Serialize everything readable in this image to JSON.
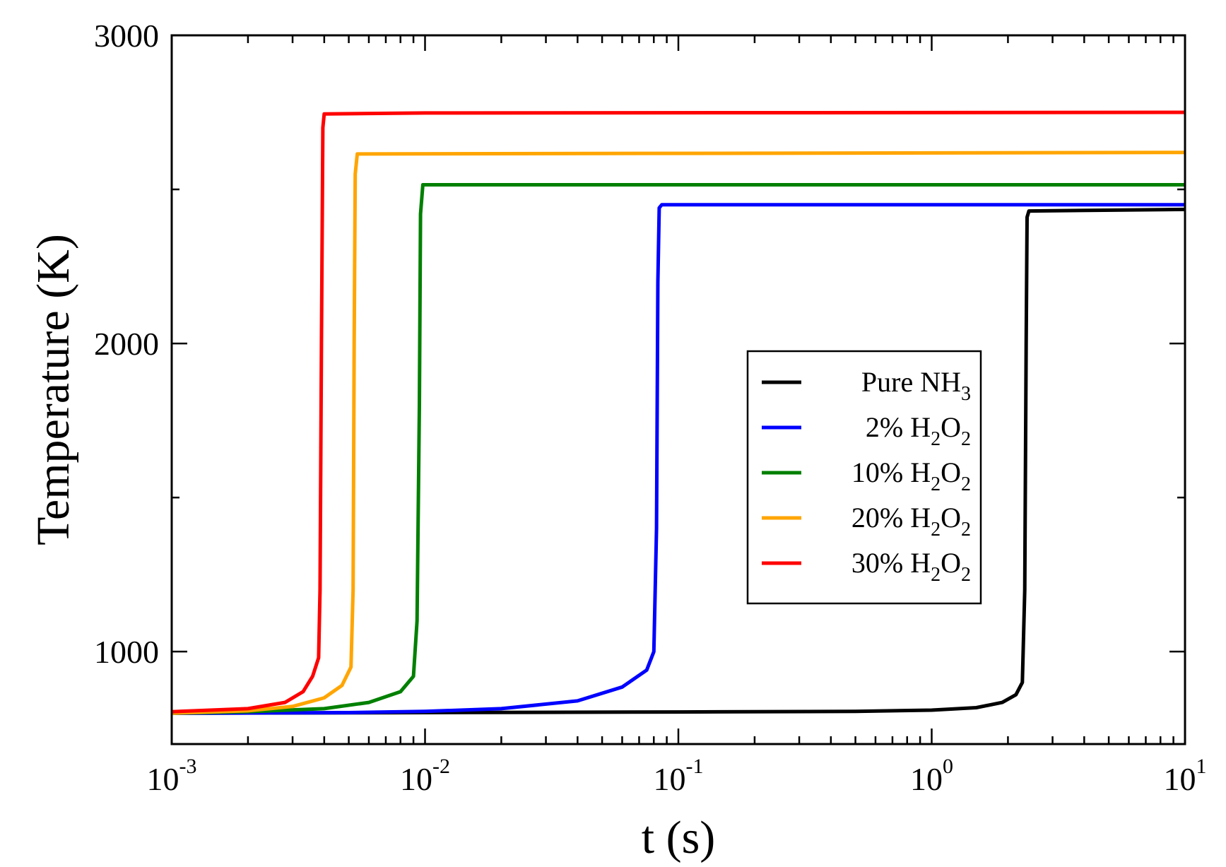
{
  "chart_data": {
    "type": "line",
    "title": "",
    "xlabel": "t (s)",
    "ylabel": "Temperature (K)",
    "xscale": "log",
    "xlim": [
      0.001,
      10
    ],
    "ylim": [
      700,
      3000
    ],
    "grid": false,
    "legend_position": "center-right",
    "xticks": [
      {
        "base": "10",
        "exp": "-3"
      },
      {
        "base": "10",
        "exp": "-2"
      },
      {
        "base": "10",
        "exp": "-1"
      },
      {
        "base": "10",
        "exp": "0"
      },
      {
        "base": "10",
        "exp": "1"
      }
    ],
    "yticks": [
      "1000",
      "2000",
      "3000"
    ],
    "series": [
      {
        "name": "Pure NH3",
        "legend": {
          "prefix": "Pure NH",
          "sub1": "3",
          "mid": "",
          "sub2": ""
        },
        "color": "#000000",
        "x": [
          0.001,
          0.01,
          0.1,
          0.5,
          1.0,
          1.5,
          1.9,
          2.15,
          2.28,
          2.33,
          2.36,
          2.38,
          2.42,
          10
        ],
        "y": [
          800,
          802,
          804,
          806,
          810,
          818,
          835,
          860,
          900,
          1200,
          2000,
          2410,
          2430,
          2435
        ]
      },
      {
        "name": "2% H2O2",
        "legend": {
          "prefix": "2% H",
          "sub1": "2",
          "mid": "O",
          "sub2": "2"
        },
        "color": "#0000ff",
        "x": [
          0.001,
          0.005,
          0.01,
          0.02,
          0.04,
          0.06,
          0.075,
          0.08,
          0.082,
          0.083,
          0.084,
          0.086,
          10
        ],
        "y": [
          800,
          802,
          806,
          815,
          840,
          885,
          940,
          1000,
          1400,
          2200,
          2440,
          2450,
          2450
        ]
      },
      {
        "name": "10% H2O2",
        "legend": {
          "prefix": "10% H",
          "sub1": "2",
          "mid": "O",
          "sub2": "2"
        },
        "color": "#008000",
        "x": [
          0.001,
          0.002,
          0.004,
          0.006,
          0.008,
          0.009,
          0.0093,
          0.0095,
          0.0096,
          0.0098,
          10
        ],
        "y": [
          800,
          805,
          815,
          835,
          870,
          920,
          1100,
          1800,
          2420,
          2515,
          2515
        ]
      },
      {
        "name": "20% H2O2",
        "legend": {
          "prefix": "20% H",
          "sub1": "2",
          "mid": "O",
          "sub2": "2"
        },
        "color": "#ffa500",
        "x": [
          0.001,
          0.002,
          0.003,
          0.004,
          0.0047,
          0.0051,
          0.0052,
          0.00525,
          0.0053,
          0.0054,
          10
        ],
        "y": [
          800,
          808,
          822,
          850,
          890,
          950,
          1200,
          2000,
          2550,
          2615,
          2620
        ]
      },
      {
        "name": "30% H2O2",
        "legend": {
          "prefix": "30% H",
          "sub1": "2",
          "mid": "O",
          "sub2": "2"
        },
        "color": "#ff0000",
        "x": [
          0.001,
          0.002,
          0.0028,
          0.0033,
          0.0036,
          0.0038,
          0.00385,
          0.0039,
          0.00395,
          0.004,
          0.01,
          10
        ],
        "y": [
          805,
          815,
          835,
          870,
          920,
          980,
          1200,
          2000,
          2700,
          2745,
          2748,
          2750
        ]
      }
    ]
  }
}
